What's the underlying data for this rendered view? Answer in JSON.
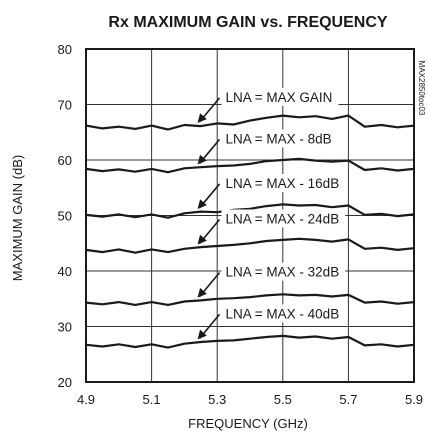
{
  "chart_data": {
    "type": "line",
    "title": "Rx MAXIMUM GAIN vs. FREQUENCY",
    "xlabel": "FREQUENCY (GHz)",
    "ylabel": "MAXIMUM GAIN (dB)",
    "xlim": [
      4.9,
      5.9
    ],
    "ylim": [
      20,
      80
    ],
    "xticks": [
      "4.9",
      "5.1",
      "5.3",
      "5.5",
      "5.7",
      "5.9"
    ],
    "yticks": [
      "20",
      "30",
      "40",
      "50",
      "60",
      "70",
      "80"
    ],
    "grid": true,
    "series": [
      {
        "name": "LNA = MAX GAIN",
        "x": [
          4.9,
          4.95,
          5.0,
          5.05,
          5.1,
          5.15,
          5.2,
          5.25,
          5.3,
          5.35,
          5.4,
          5.45,
          5.5,
          5.55,
          5.6,
          5.65,
          5.7,
          5.75,
          5.8,
          5.85,
          5.9
        ],
        "y": [
          66.2,
          65.7,
          66.0,
          65.6,
          66.2,
          65.5,
          66.3,
          66.1,
          66.6,
          66.4,
          67.1,
          67.6,
          68.0,
          67.7,
          67.9,
          67.4,
          68.0,
          66.0,
          66.3,
          65.9,
          66.2
        ]
      },
      {
        "name": "LNA = MAX - 8dB",
        "x": [
          4.9,
          4.95,
          5.0,
          5.05,
          5.1,
          5.15,
          5.2,
          5.25,
          5.3,
          5.35,
          5.4,
          5.45,
          5.5,
          5.55,
          5.6,
          5.65,
          5.7,
          5.75,
          5.8,
          5.85,
          5.9
        ],
        "y": [
          58.4,
          58.0,
          58.3,
          57.9,
          58.4,
          57.8,
          58.5,
          58.7,
          58.9,
          59.0,
          59.3,
          59.8,
          60.0,
          60.2,
          59.9,
          59.7,
          59.9,
          58.2,
          58.5,
          58.1,
          58.4
        ]
      },
      {
        "name": "LNA = MAX - 16dB",
        "x": [
          4.9,
          4.95,
          5.0,
          5.05,
          5.1,
          5.15,
          5.2,
          5.25,
          5.3,
          5.35,
          5.4,
          5.45,
          5.5,
          5.55,
          5.6,
          5.65,
          5.7,
          5.75,
          5.8,
          5.85,
          5.9
        ],
        "y": [
          50.1,
          49.8,
          50.2,
          49.7,
          50.2,
          49.6,
          50.4,
          50.7,
          50.6,
          51.0,
          51.2,
          51.7,
          52.0,
          51.8,
          51.9,
          51.5,
          51.8,
          50.1,
          50.3,
          49.9,
          50.2
        ]
      },
      {
        "name": "LNA = MAX - 24dB",
        "x": [
          4.9,
          4.95,
          5.0,
          5.05,
          5.1,
          5.15,
          5.2,
          5.25,
          5.3,
          5.35,
          5.4,
          5.45,
          5.5,
          5.55,
          5.6,
          5.65,
          5.7,
          5.75,
          5.8,
          5.85,
          5.9
        ],
        "y": [
          43.8,
          43.4,
          43.9,
          43.3,
          43.9,
          43.4,
          44.0,
          44.3,
          44.5,
          44.7,
          45.0,
          45.4,
          45.6,
          45.8,
          45.6,
          45.3,
          45.7,
          44.0,
          44.2,
          43.8,
          44.1
        ]
      },
      {
        "name": "LNA = MAX - 32dB",
        "x": [
          4.9,
          4.95,
          5.0,
          5.05,
          5.1,
          5.15,
          5.2,
          5.25,
          5.3,
          5.35,
          5.4,
          5.45,
          5.5,
          5.55,
          5.6,
          5.65,
          5.7,
          5.75,
          5.8,
          5.85,
          5.9
        ],
        "y": [
          34.3,
          34.0,
          34.4,
          33.9,
          34.4,
          33.9,
          34.5,
          34.7,
          35.0,
          35.1,
          35.3,
          35.6,
          35.8,
          35.6,
          35.7,
          35.4,
          35.7,
          34.3,
          34.5,
          34.1,
          34.4
        ]
      },
      {
        "name": "LNA = MAX - 40dB",
        "x": [
          4.9,
          4.95,
          5.0,
          5.05,
          5.1,
          5.15,
          5.2,
          5.25,
          5.3,
          5.35,
          5.4,
          5.45,
          5.5,
          5.55,
          5.6,
          5.65,
          5.7,
          5.75,
          5.8,
          5.85,
          5.9
        ],
        "y": [
          26.7,
          26.4,
          26.8,
          26.3,
          26.8,
          26.2,
          26.9,
          27.2,
          27.4,
          27.5,
          27.8,
          28.1,
          28.3,
          28.0,
          28.2,
          27.8,
          28.1,
          26.6,
          26.8,
          26.4,
          26.7
        ]
      }
    ],
    "annotations": [
      {
        "text": "LNA = MAX GAIN",
        "series": 0,
        "at_x": 5.24
      },
      {
        "text": "LNA = MAX - 8dB",
        "series": 1,
        "at_x": 5.24
      },
      {
        "text": "LNA = MAX - 16dB",
        "series": 2,
        "at_x": 5.24
      },
      {
        "text": "LNA = MAX - 24dB",
        "series": 3,
        "at_x": 5.24
      },
      {
        "text": "LNA = MAX - 32dB",
        "series": 4,
        "at_x": 5.24
      },
      {
        "text": "LNA = MAX - 40dB",
        "series": 5,
        "at_x": 5.24
      }
    ],
    "figure_code": "MAX2850toc03"
  }
}
